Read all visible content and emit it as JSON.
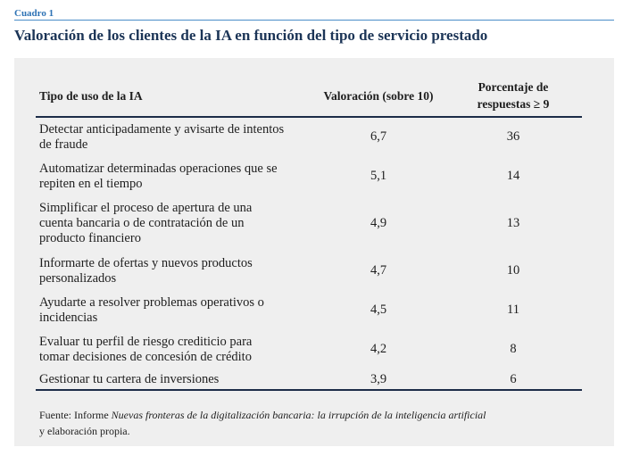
{
  "label": "Cuadro 1",
  "title": "Valoración de los clientes de la IA en función del tipo de servicio prestado",
  "table": {
    "headers": [
      "Tipo de uso de la IA",
      "Valoración (sobre 10)",
      "Porcentaje de\nrespuestas ≥ 9"
    ],
    "rows": [
      {
        "uso": "Detectar anticipadamente y avisarte de intentos\nde fraude",
        "valoracion": "6,7",
        "porcentaje": "36"
      },
      {
        "uso": "Automatizar determinadas operaciones que se\nrepiten en el tiempo",
        "valoracion": "5,1",
        "porcentaje": "14"
      },
      {
        "uso": "Simplificar el proceso de apertura de una\ncuenta bancaria o de contratación de un\nproducto financiero",
        "valoracion": "4,9",
        "porcentaje": "13"
      },
      {
        "uso": "Informarte de ofertas y nuevos productos\npersonalizados",
        "valoracion": "4,7",
        "porcentaje": "10"
      },
      {
        "uso": "Ayudarte a resolver problemas operativos o\nincidencias",
        "valoracion": "4,5",
        "porcentaje": "11"
      },
      {
        "uso": "Evaluar tu perfil de riesgo crediticio para\ntomar decisiones de concesión de crédito",
        "valoracion": "4,2",
        "porcentaje": "8"
      },
      {
        "uso": "Gestionar tu cartera de inversiones",
        "valoracion": "3,9",
        "porcentaje": "6"
      }
    ]
  },
  "source": {
    "prefix": "Fuente: Informe ",
    "title": "Nuevas fronteras de la digitalización bancaria: la irrupción de la inteligencia artificial",
    "suffix": "y elaboración propia."
  },
  "colors": {
    "accent": "#2e73b5",
    "rule_light": "#4a8cc8",
    "title": "#1c3557",
    "panel": "#efefef",
    "rule_dark": "#1c2c48",
    "text": "#1e1e1e"
  }
}
